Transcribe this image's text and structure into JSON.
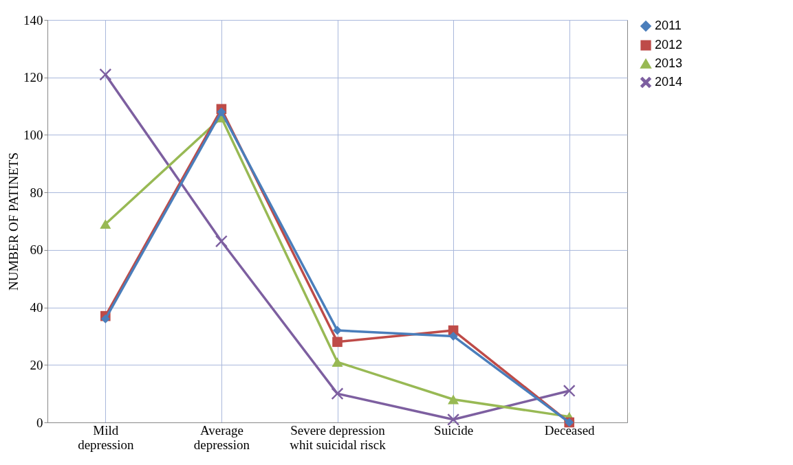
{
  "chart_data": {
    "type": "line",
    "ylabel": "NUMBER OF PATINETS",
    "categories": [
      "Mild depression",
      "Average depression",
      "Severe depression whit suicidal risck",
      "Suicide",
      "Deceased"
    ],
    "series": [
      {
        "name": "2011",
        "color": "#4a7ebb",
        "marker": "diamond",
        "values": [
          36,
          108,
          32,
          30,
          0
        ]
      },
      {
        "name": "2012",
        "color": "#be4b48",
        "marker": "square",
        "values": [
          37,
          109,
          28,
          32,
          0
        ]
      },
      {
        "name": "2013",
        "color": "#98b954",
        "marker": "triangle",
        "values": [
          69,
          106,
          21,
          8,
          2
        ]
      },
      {
        "name": "2014",
        "color": "#7d5fa0",
        "marker": "cross",
        "values": [
          121,
          63,
          10,
          1,
          11
        ]
      }
    ],
    "ylim": [
      0,
      140
    ],
    "yticks": [
      0,
      20,
      40,
      60,
      80,
      100,
      120,
      140
    ],
    "grid": true,
    "legend": "right",
    "line_style": "solid"
  }
}
